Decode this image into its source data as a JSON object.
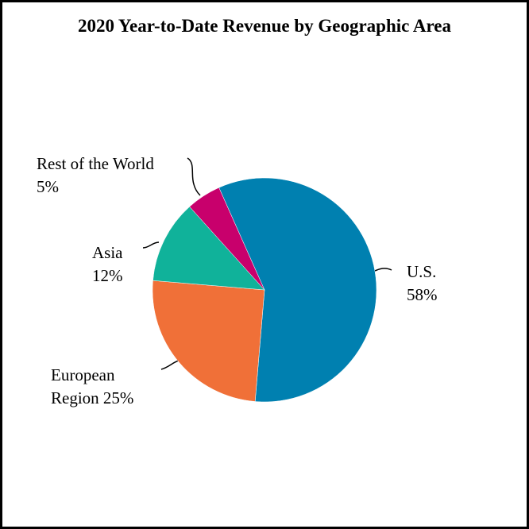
{
  "chart_data": {
    "type": "pie",
    "title": "2020 Year-to-Date Revenue by Geographic Area",
    "categories": [
      "U.S.",
      "European Region",
      "Asia",
      "Rest of the World"
    ],
    "values": [
      58,
      25,
      12,
      5
    ],
    "value_labels": [
      "58%",
      "25%",
      "12%",
      "5%"
    ],
    "colors": [
      "#0080b0",
      "#f07038",
      "#10b29a",
      "#c8006c"
    ]
  }
}
